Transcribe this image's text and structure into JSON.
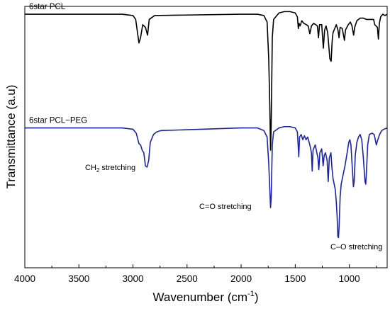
{
  "chart_data": {
    "type": "line",
    "title": "",
    "xlabel": "Wavenumber (cm-1)",
    "xlabel_main": "Wavenumber (cm",
    "xlabel_sup": "-1",
    "xlabel_close": ")",
    "ylabel": "Transmittance (a.u)",
    "xlim": [
      4000,
      650
    ],
    "x_reversed": true,
    "y_ticks_shown": false,
    "grid": false,
    "legend": "none",
    "x_ticks": [
      "4000",
      "3500",
      "3000",
      "2500",
      "2000",
      "1500",
      "1000"
    ],
    "series": [
      {
        "name": "6star PCL",
        "color": "#000000",
        "offset": 0.97,
        "points": [
          [
            4000,
            0.97
          ],
          [
            3500,
            0.97
          ],
          [
            3100,
            0.97
          ],
          [
            3000,
            0.965
          ],
          [
            2975,
            0.95
          ],
          [
            2945,
            0.86
          ],
          [
            2930,
            0.88
          ],
          [
            2910,
            0.93
          ],
          [
            2885,
            0.92
          ],
          [
            2865,
            0.89
          ],
          [
            2850,
            0.95
          ],
          [
            2800,
            0.965
          ],
          [
            2000,
            0.97
          ],
          [
            1850,
            0.97
          ],
          [
            1790,
            0.965
          ],
          [
            1760,
            0.94
          ],
          [
            1745,
            0.8
          ],
          [
            1735,
            0.62
          ],
          [
            1728,
            0.45
          ],
          [
            1722,
            0.55
          ],
          [
            1712,
            0.88
          ],
          [
            1700,
            0.95
          ],
          [
            1650,
            0.975
          ],
          [
            1600,
            0.98
          ],
          [
            1550,
            0.98
          ],
          [
            1500,
            0.975
          ],
          [
            1480,
            0.96
          ],
          [
            1471,
            0.915
          ],
          [
            1465,
            0.935
          ],
          [
            1455,
            0.925
          ],
          [
            1440,
            0.945
          ],
          [
            1420,
            0.935
          ],
          [
            1397,
            0.93
          ],
          [
            1380,
            0.925
          ],
          [
            1365,
            0.895
          ],
          [
            1350,
            0.925
          ],
          [
            1330,
            0.935
          ],
          [
            1310,
            0.93
          ],
          [
            1295,
            0.925
          ],
          [
            1285,
            0.88
          ],
          [
            1275,
            0.93
          ],
          [
            1255,
            0.93
          ],
          [
            1240,
            0.84
          ],
          [
            1228,
            0.91
          ],
          [
            1215,
            0.925
          ],
          [
            1200,
            0.9
          ],
          [
            1190,
            0.85
          ],
          [
            1180,
            0.8
          ],
          [
            1168,
            0.79
          ],
          [
            1158,
            0.87
          ],
          [
            1150,
            0.9
          ],
          [
            1120,
            0.93
          ],
          [
            1105,
            0.91
          ],
          [
            1095,
            0.88
          ],
          [
            1085,
            0.92
          ],
          [
            1065,
            0.915
          ],
          [
            1045,
            0.87
          ],
          [
            1035,
            0.91
          ],
          [
            1010,
            0.93
          ],
          [
            990,
            0.94
          ],
          [
            975,
            0.925
          ],
          [
            960,
            0.89
          ],
          [
            950,
            0.92
          ],
          [
            930,
            0.945
          ],
          [
            900,
            0.955
          ],
          [
            870,
            0.955
          ],
          [
            840,
            0.95
          ],
          [
            800,
            0.95
          ],
          [
            775,
            0.95
          ],
          [
            765,
            0.93
          ],
          [
            740,
            0.92
          ],
          [
            731,
            0.875
          ],
          [
            722,
            0.935
          ],
          [
            710,
            0.96
          ],
          [
            690,
            0.97
          ],
          [
            670,
            0.965
          ],
          [
            650,
            0.97
          ]
        ]
      },
      {
        "name": "6star PCL−PEG",
        "color": "#1b24a8",
        "offset": 0.535,
        "points": [
          [
            4000,
            0.535
          ],
          [
            3500,
            0.535
          ],
          [
            3100,
            0.535
          ],
          [
            3000,
            0.53
          ],
          [
            2970,
            0.515
          ],
          [
            2945,
            0.475
          ],
          [
            2930,
            0.47
          ],
          [
            2915,
            0.45
          ],
          [
            2900,
            0.44
          ],
          [
            2885,
            0.39
          ],
          [
            2870,
            0.385
          ],
          [
            2855,
            0.41
          ],
          [
            2840,
            0.48
          ],
          [
            2810,
            0.51
          ],
          [
            2780,
            0.52
          ],
          [
            2740,
            0.525
          ],
          [
            2000,
            0.535
          ],
          [
            1850,
            0.535
          ],
          [
            1790,
            0.525
          ],
          [
            1760,
            0.5
          ],
          [
            1745,
            0.4
          ],
          [
            1735,
            0.3
          ],
          [
            1728,
            0.23
          ],
          [
            1722,
            0.27
          ],
          [
            1712,
            0.47
          ],
          [
            1700,
            0.52
          ],
          [
            1650,
            0.535
          ],
          [
            1600,
            0.54
          ],
          [
            1550,
            0.54
          ],
          [
            1500,
            0.535
          ],
          [
            1480,
            0.52
          ],
          [
            1467,
            0.425
          ],
          [
            1460,
            0.5
          ],
          [
            1445,
            0.51
          ],
          [
            1430,
            0.49
          ],
          [
            1415,
            0.505
          ],
          [
            1400,
            0.49
          ],
          [
            1385,
            0.5
          ],
          [
            1365,
            0.47
          ],
          [
            1350,
            0.44
          ],
          [
            1343,
            0.37
          ],
          [
            1335,
            0.45
          ],
          [
            1315,
            0.47
          ],
          [
            1300,
            0.44
          ],
          [
            1290,
            0.42
          ],
          [
            1282,
            0.375
          ],
          [
            1272,
            0.44
          ],
          [
            1255,
            0.455
          ],
          [
            1242,
            0.39
          ],
          [
            1232,
            0.43
          ],
          [
            1220,
            0.44
          ],
          [
            1205,
            0.41
          ],
          [
            1195,
            0.33
          ],
          [
            1185,
            0.42
          ],
          [
            1170,
            0.44
          ],
          [
            1160,
            0.38
          ],
          [
            1150,
            0.34
          ],
          [
            1140,
            0.32
          ],
          [
            1130,
            0.3
          ],
          [
            1120,
            0.25
          ],
          [
            1112,
            0.19
          ],
          [
            1106,
            0.12
          ],
          [
            1100,
            0.115
          ],
          [
            1094,
            0.16
          ],
          [
            1085,
            0.27
          ],
          [
            1075,
            0.32
          ],
          [
            1060,
            0.35
          ],
          [
            1040,
            0.39
          ],
          [
            1020,
            0.44
          ],
          [
            1005,
            0.48
          ],
          [
            995,
            0.49
          ],
          [
            985,
            0.47
          ],
          [
            972,
            0.38
          ],
          [
            962,
            0.31
          ],
          [
            955,
            0.33
          ],
          [
            945,
            0.43
          ],
          [
            930,
            0.48
          ],
          [
            915,
            0.5
          ],
          [
            900,
            0.51
          ],
          [
            885,
            0.49
          ],
          [
            870,
            0.42
          ],
          [
            855,
            0.33
          ],
          [
            848,
            0.32
          ],
          [
            840,
            0.38
          ],
          [
            830,
            0.47
          ],
          [
            815,
            0.51
          ],
          [
            790,
            0.515
          ],
          [
            770,
            0.51
          ],
          [
            760,
            0.49
          ],
          [
            750,
            0.47
          ],
          [
            740,
            0.485
          ],
          [
            720,
            0.51
          ],
          [
            700,
            0.525
          ],
          [
            680,
            0.53
          ],
          [
            650,
            0.535
          ]
        ]
      }
    ],
    "annotations": [
      {
        "id": "ch2",
        "main": "CH",
        "sub": "2",
        "rest": " stretching"
      },
      {
        "id": "co_double",
        "text": "C=O stretching"
      },
      {
        "id": "co_single",
        "text": "C–O stretching"
      }
    ]
  }
}
